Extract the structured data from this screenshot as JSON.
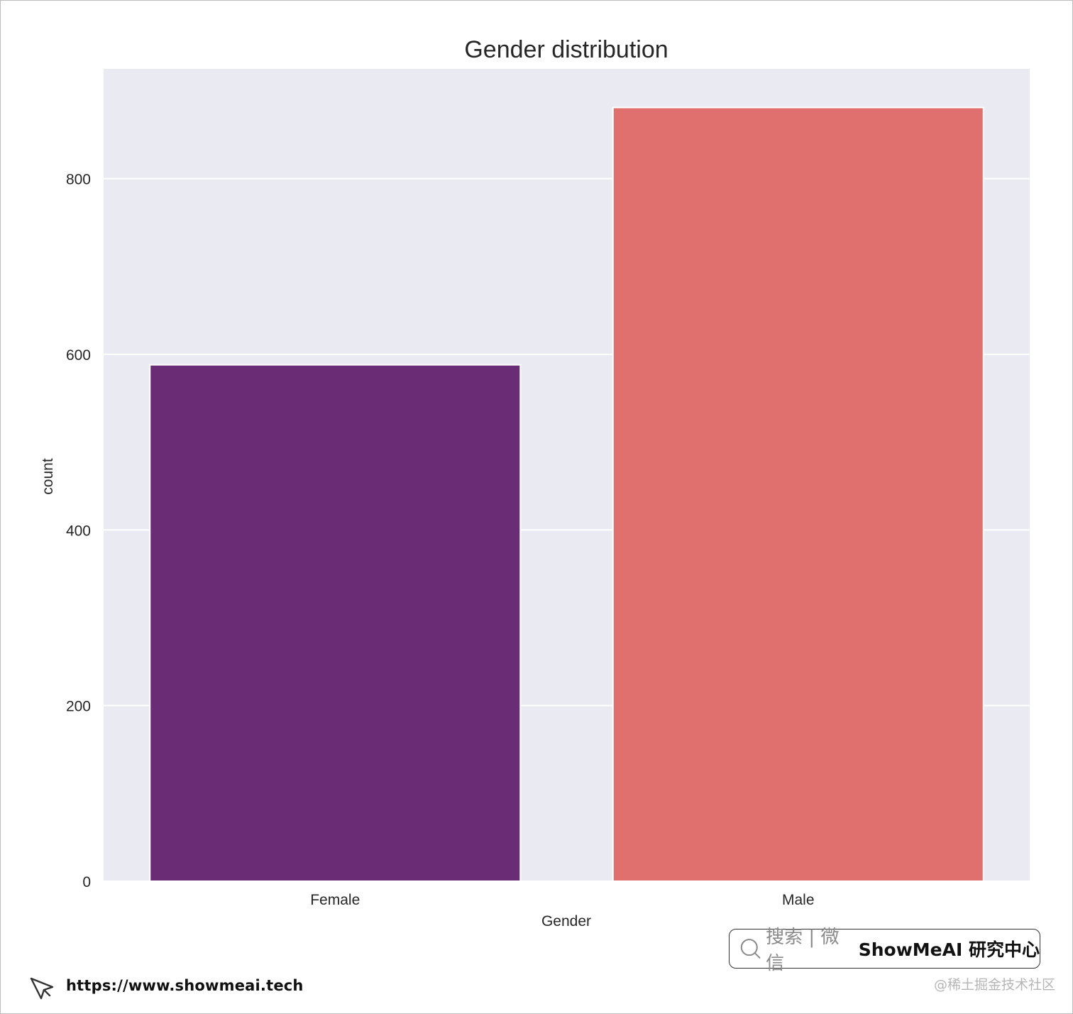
{
  "chart_data": {
    "type": "bar",
    "title": "Gender distribution",
    "xlabel": "Gender",
    "ylabel": "count",
    "categories": [
      "Female",
      "Male"
    ],
    "values": [
      588,
      881
    ],
    "colors": [
      "#6a2c74",
      "#df706e"
    ],
    "ylim": [
      0,
      925
    ],
    "yticks": [
      0,
      200,
      400,
      600,
      800
    ],
    "grid": true,
    "background": "#eaeaf2",
    "grid_color": "#ffffff"
  },
  "footer": {
    "url": "https://www.showmeai.tech",
    "badge_prefix": "搜索 | 微信",
    "badge_brand": "ShowMeAI 研究中心",
    "watermark": "@稀土掘金技术社区"
  }
}
